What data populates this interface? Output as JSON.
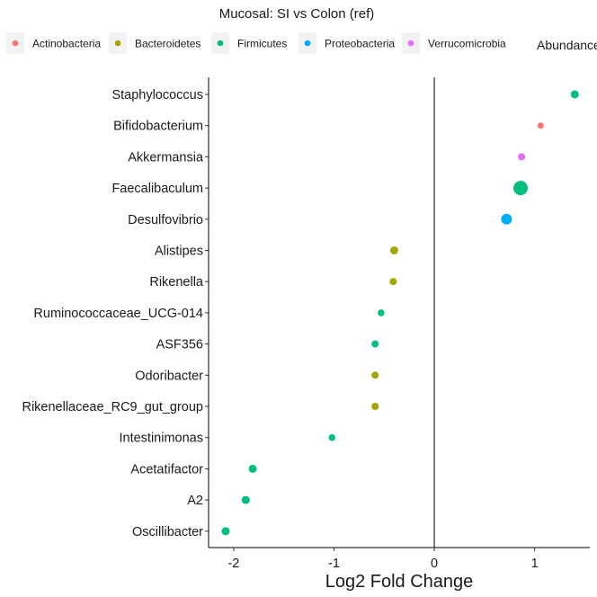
{
  "chart_data": {
    "type": "scatter",
    "title": "Mucosal: SI vs Colon (ref)",
    "xlabel": "Log2 Fold Change",
    "ylabel": "",
    "xlim": [
      -2.25,
      1.55
    ],
    "xticks": [
      -2,
      -1,
      0,
      1
    ],
    "xtick_labels": [
      "-2",
      "-1",
      "0",
      "1"
    ],
    "reference_line_x": 0,
    "grid": false,
    "legend_position": "top",
    "legend_title": "",
    "size_legend_label": "Abundance",
    "categories": [
      "Staphylococcus",
      "Bifidobacterium",
      "Akkermansia",
      "Faecalibaculum",
      "Desulfovibrio",
      "Alistipes",
      "Rikenella",
      "Ruminococcaceae_UCG-014",
      "ASF356",
      "Odoribacter",
      "Rikenellaceae_RC9_gut_group",
      "Intestinimonas",
      "Acetatifactor",
      "A2",
      "Oscillibacter"
    ],
    "phyla": [
      {
        "name": "Actinobacteria",
        "color": "#f8766d"
      },
      {
        "name": "Bacteroidetes",
        "color": "#a3a500"
      },
      {
        "name": "Firmicutes",
        "color": "#00bf7d"
      },
      {
        "name": "Proteobacteria",
        "color": "#00b0f6"
      },
      {
        "name": "Verrucomicrobia",
        "color": "#e76bf3"
      }
    ],
    "points": [
      {
        "genus": "Staphylococcus",
        "x": 1.4,
        "phylum": "Firmicutes",
        "size": 4.5
      },
      {
        "genus": "Bifidobacterium",
        "x": 1.06,
        "phylum": "Actinobacteria",
        "size": 3.5
      },
      {
        "genus": "Akkermansia",
        "x": 0.87,
        "phylum": "Verrucomicrobia",
        "size": 4
      },
      {
        "genus": "Faecalibaculum",
        "x": 0.86,
        "phylum": "Firmicutes",
        "size": 8
      },
      {
        "genus": "Desulfovibrio",
        "x": 0.72,
        "phylum": "Proteobacteria",
        "size": 6
      },
      {
        "genus": "Alistipes",
        "x": -0.4,
        "phylum": "Bacteroidetes",
        "size": 4.5
      },
      {
        "genus": "Rikenella",
        "x": -0.41,
        "phylum": "Bacteroidetes",
        "size": 4
      },
      {
        "genus": "Ruminococcaceae_UCG-014",
        "x": -0.53,
        "phylum": "Firmicutes",
        "size": 3.8
      },
      {
        "genus": "ASF356",
        "x": -0.59,
        "phylum": "Firmicutes",
        "size": 4
      },
      {
        "genus": "Odoribacter",
        "x": -0.59,
        "phylum": "Bacteroidetes",
        "size": 4
      },
      {
        "genus": "Rikenellaceae_RC9_gut_group",
        "x": -0.59,
        "phylum": "Bacteroidetes",
        "size": 4
      },
      {
        "genus": "Intestinimonas",
        "x": -1.02,
        "phylum": "Firmicutes",
        "size": 3.8
      },
      {
        "genus": "Acetatifactor",
        "x": -1.81,
        "phylum": "Firmicutes",
        "size": 4.5
      },
      {
        "genus": "A2",
        "x": -1.88,
        "phylum": "Firmicutes",
        "size": 4.5
      },
      {
        "genus": "Oscillibacter",
        "x": -2.08,
        "phylum": "Firmicutes",
        "size": 4.5
      }
    ]
  }
}
